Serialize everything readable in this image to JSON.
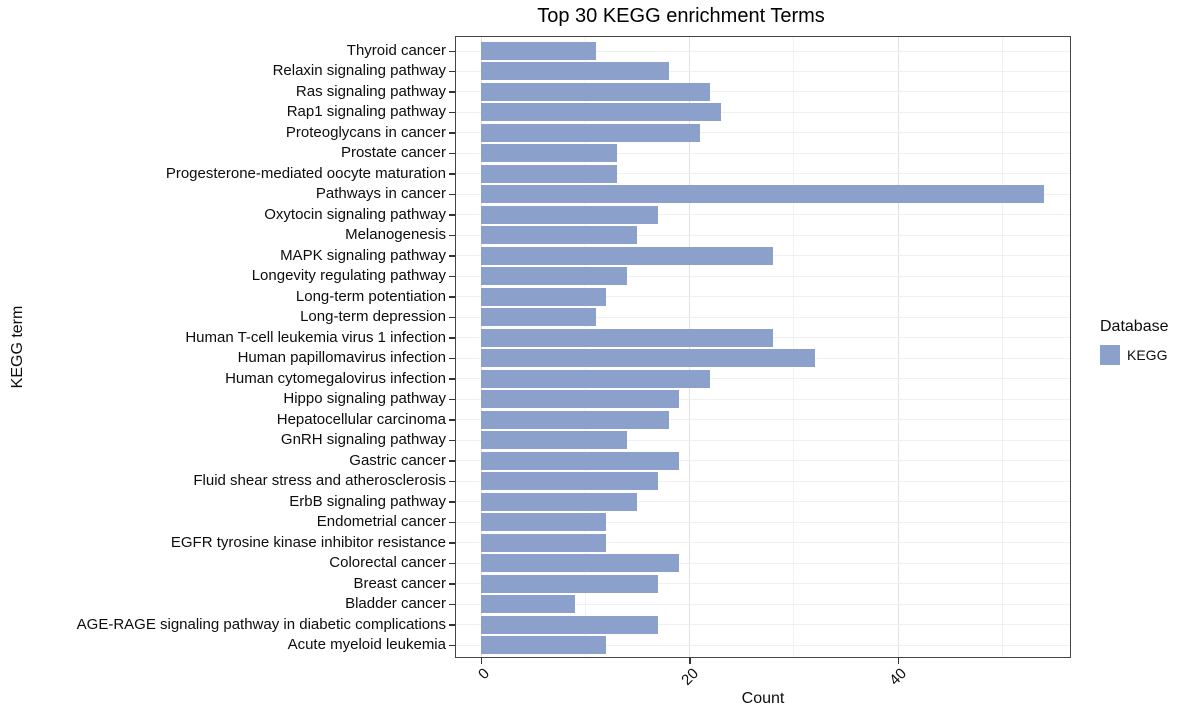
{
  "title": "Top 30 KEGG enrichment Terms",
  "colors": {
    "bar": "#8BA0CB",
    "panel_border": "#454545",
    "grid_major": "#E3E3E3",
    "grid_minor": "#F1F1F1",
    "row_grid": "#F0F0F0",
    "tick": "#333333",
    "text": "#0D0D0D"
  },
  "chart_data": {
    "type": "bar",
    "orientation": "horizontal",
    "title": "Top 30 KEGG enrichment Terms",
    "xlabel": "Count",
    "ylabel": "KEGG term",
    "xticks": [
      0,
      20,
      40
    ],
    "xticks_minor": [
      10,
      30,
      50
    ],
    "xlim": [
      0,
      57
    ],
    "grid": true,
    "legend": {
      "title": "Database",
      "position": "right",
      "items": [
        {
          "label": "KEGG",
          "color": "#8BA0CB"
        }
      ]
    },
    "categories": [
      "Thyroid cancer",
      "Relaxin signaling pathway",
      "Ras signaling pathway",
      "Rap1 signaling pathway",
      "Proteoglycans in cancer",
      "Prostate cancer",
      "Progesterone-mediated oocyte maturation",
      "Pathways in cancer",
      "Oxytocin signaling pathway",
      "Melanogenesis",
      "MAPK signaling pathway",
      "Longevity regulating pathway",
      "Long-term potentiation",
      "Long-term depression",
      "Human T-cell leukemia virus 1 infection",
      "Human papillomavirus infection",
      "Human cytomegalovirus infection",
      "Hippo signaling pathway",
      "Hepatocellular carcinoma",
      "GnRH signaling pathway",
      "Gastric cancer",
      "Fluid shear stress and atherosclerosis",
      "ErbB signaling pathway",
      "Endometrial cancer",
      "EGFR tyrosine kinase inhibitor resistance",
      "Colorectal cancer",
      "Breast cancer",
      "Bladder cancer",
      "AGE-RAGE signaling pathway in diabetic complications",
      "Acute myeloid leukemia"
    ],
    "values": [
      11,
      18,
      22,
      23,
      21,
      13,
      13,
      54,
      17,
      15,
      28,
      14,
      12,
      11,
      28,
      32,
      22,
      19,
      18,
      14,
      19,
      17,
      15,
      12,
      12,
      19,
      17,
      9,
      17,
      12
    ]
  }
}
